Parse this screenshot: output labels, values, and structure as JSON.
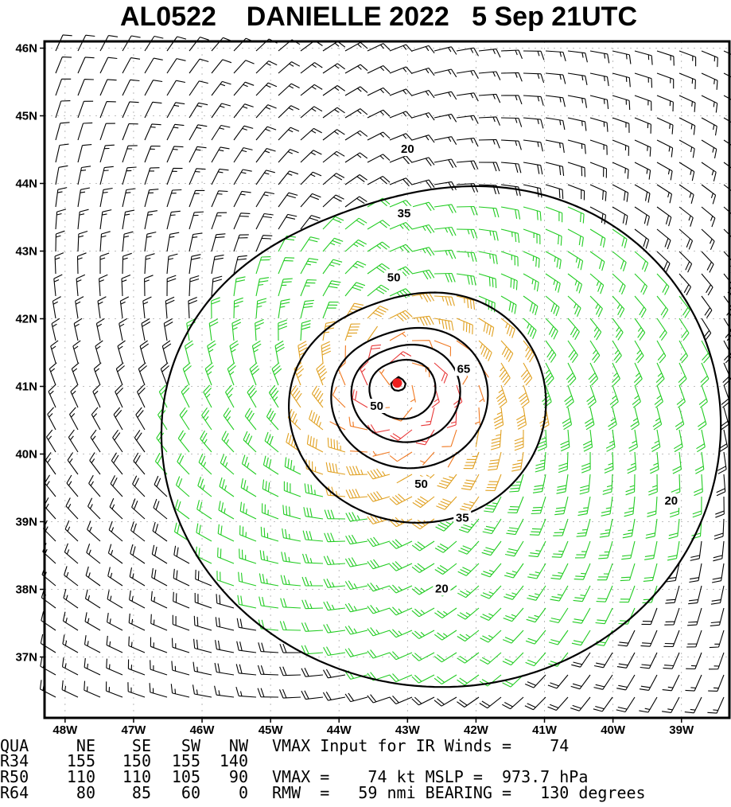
{
  "chart_data": {
    "type": "wind-field",
    "title": "AL0522    DANIELLE 2022   5 Sep 21UTC",
    "storm_id": "AL0522",
    "storm_name": "DANIELLE",
    "year": "2022",
    "date_time": "5 Sep 21UTC",
    "x_axis": {
      "range": [
        -48.3,
        -38.3
      ],
      "tick_labels": [
        "48W",
        "47W",
        "46W",
        "45W",
        "44W",
        "43W",
        "42W",
        "41W",
        "40W",
        "39W"
      ],
      "tick_values": [
        -48,
        -47,
        -46,
        -45,
        -44,
        -43,
        -42,
        -41,
        -40,
        -39
      ]
    },
    "y_axis": {
      "range": [
        36.1,
        46.1
      ],
      "tick_labels": [
        "37N",
        "38N",
        "39N",
        "40N",
        "41N",
        "42N",
        "43N",
        "44N",
        "45N",
        "46N"
      ],
      "tick_values": [
        37,
        38,
        39,
        40,
        41,
        42,
        43,
        44,
        45,
        46
      ]
    },
    "grid": true,
    "center": {
      "lon": -43.15,
      "lat": 41.05
    },
    "contours": [
      {
        "level": 20,
        "label": "20"
      },
      {
        "level": 35,
        "label": "35"
      },
      {
        "level": 50,
        "label": "50"
      },
      {
        "level": 65,
        "label": "65"
      }
    ],
    "contour_labels": [
      {
        "text": "20",
        "lon": -43.0,
        "lat": 44.5
      },
      {
        "text": "35",
        "lon": -43.05,
        "lat": 43.55
      },
      {
        "text": "50",
        "lon": -43.2,
        "lat": 42.6
      },
      {
        "text": "65",
        "lon": -42.18,
        "lat": 41.25
      },
      {
        "text": "50",
        "lon": -43.45,
        "lat": 40.7
      },
      {
        "text": "50",
        "lon": -42.8,
        "lat": 39.55
      },
      {
        "text": "35",
        "lon": -42.2,
        "lat": 39.05
      },
      {
        "text": "20",
        "lon": -42.5,
        "lat": 38.0
      },
      {
        "text": "20",
        "lon": -39.15,
        "lat": 39.3
      }
    ],
    "wind_colors": {
      "calm": "#000000",
      "tropical_storm": "#22cc22",
      "strong_ts": "#e0a020",
      "storm": "#f07820",
      "hurricane": "#e83838"
    },
    "info_table": {
      "headers": [
        "QUA",
        "NE",
        "SE",
        "SW",
        "NW"
      ],
      "rows": [
        [
          "R34",
          "155",
          "150",
          "155",
          "140"
        ],
        [
          "R50",
          "110",
          "110",
          "105",
          "90"
        ],
        [
          "R64",
          "80",
          "85",
          "60",
          "0"
        ]
      ]
    },
    "info_lines": {
      "vmax_ir": "VMAX Input for IR Winds =    74",
      "vmax_mslp": "VMAX =    74 kt MSLP =  973.7 hPa",
      "rmw": "RMW  =   59 nmi BEARING =   130 degrees"
    }
  }
}
